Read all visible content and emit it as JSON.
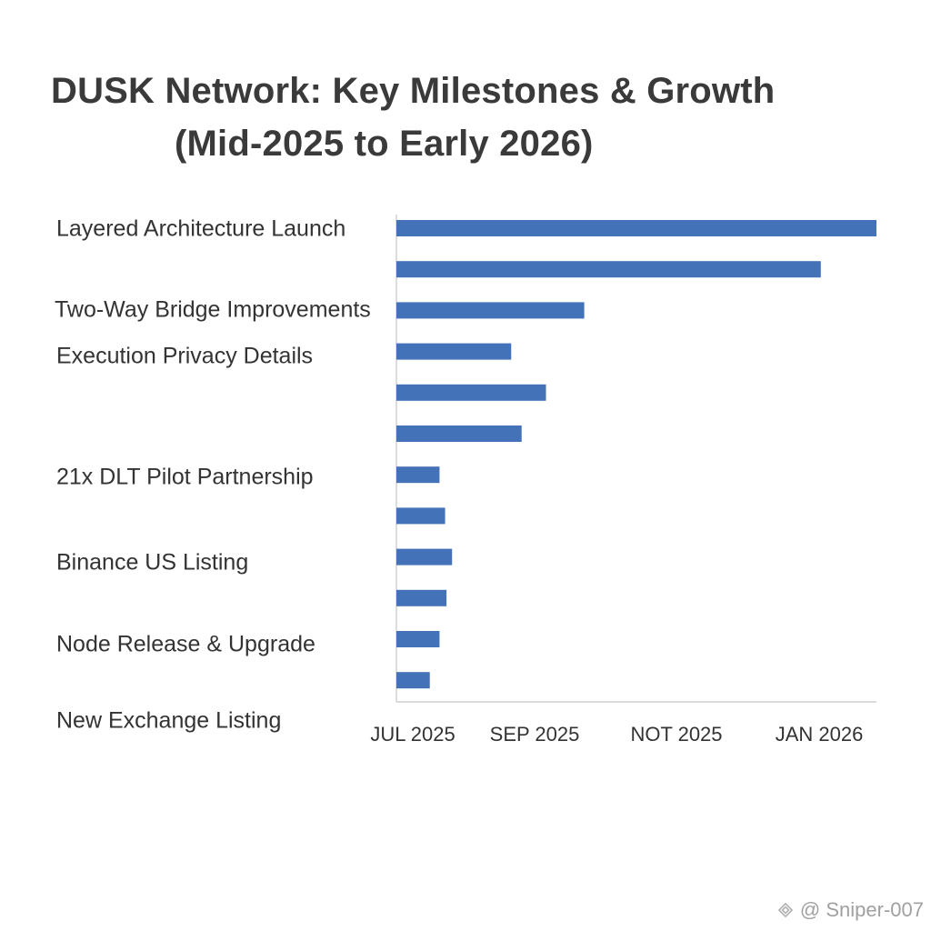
{
  "chart_data": {
    "type": "bar",
    "orientation": "horizontal",
    "title": "DUSK Network: Key Milestones & Growth",
    "subtitle": "(Mid-2025 to Early 2026)",
    "categories": [
      "Layered Architecture Launch",
      "",
      "Two-Way Bridge Improvements",
      "Execution Privacy Details",
      "",
      "",
      "21x DLT  Pilot Partnership",
      "",
      "Binance US Listing",
      "",
      "Node Release & Upgrade",
      "",
      "New Exchange Listing"
    ],
    "values": [
      6.9,
      6.1,
      2.7,
      1.65,
      2.15,
      1.8,
      0.62,
      0.7,
      0.8,
      0.72,
      0.62,
      0.48,
      null
    ],
    "x_ticks": [
      {
        "label": "JUL 2025",
        "value": 0.2
      },
      {
        "label": "SEP 2025",
        "value": 2.0
      },
      {
        "label": "NOT 2025",
        "value": 4.0
      },
      {
        "label": "JAN 2026",
        "value": 6.0
      }
    ],
    "xlim": [
      0,
      6.9
    ],
    "xlabel": "",
    "ylabel": "",
    "grid": false,
    "bar_color": "#4472b8",
    "axis_color": "#d0d0d0"
  },
  "watermark": {
    "text": "@ Sniper-007",
    "icon": "binance-square-logo-icon"
  }
}
